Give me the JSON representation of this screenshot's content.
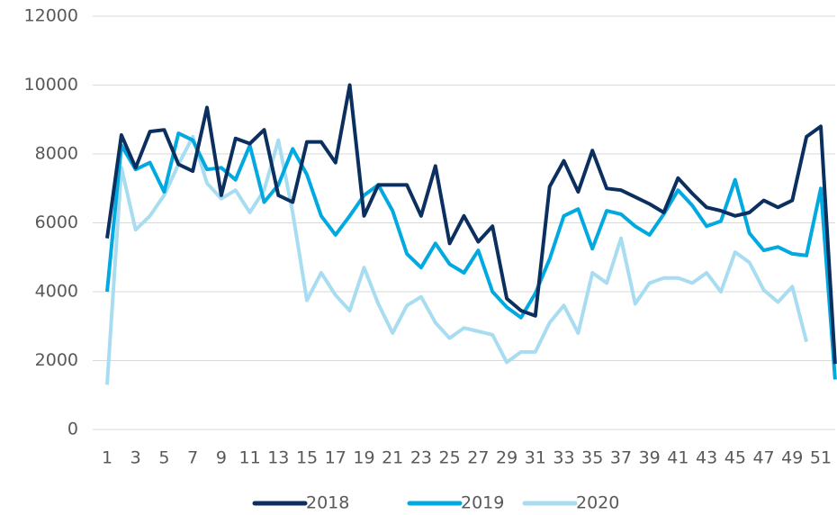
{
  "chart_data": {
    "type": "line",
    "categories": [
      "1",
      null,
      "3",
      null,
      "5",
      null,
      "7",
      null,
      "9",
      null,
      "11",
      null,
      "13",
      null,
      "15",
      null,
      "17",
      null,
      "19",
      null,
      "21",
      null,
      "23",
      null,
      "25",
      null,
      "27",
      null,
      "29",
      null,
      "31",
      null,
      "33",
      null,
      "35",
      null,
      "37",
      null,
      "39",
      null,
      "41",
      null,
      "43",
      null,
      "45",
      null,
      "47",
      null,
      "49",
      null,
      "51",
      null
    ],
    "series": [
      {
        "name": "2018",
        "color": "#0b2f5e",
        "values": [
          5550,
          8550,
          7600,
          8650,
          8700,
          7700,
          7500,
          9350,
          6800,
          8450,
          8300,
          8700,
          6800,
          6600,
          8350,
          8350,
          7750,
          10000,
          6200,
          7100,
          7100,
          7100,
          6200,
          7650,
          5400,
          6200,
          5450,
          5900,
          3800,
          3450,
          3300,
          7050,
          7800,
          6900,
          8100,
          7000,
          6950,
          6750,
          6550,
          6300,
          7300,
          6850,
          6450,
          6350,
          6200,
          6300,
          6650,
          6450,
          6650,
          8500,
          8800,
          1900
        ]
      },
      {
        "name": "2019",
        "color": "#00a9e0",
        "values": [
          4000,
          8250,
          7550,
          7750,
          6900,
          8600,
          8400,
          7550,
          7600,
          7250,
          8250,
          6600,
          7100,
          8150,
          7400,
          6200,
          5650,
          6200,
          6800,
          7100,
          6350,
          5100,
          4700,
          5400,
          4800,
          4550,
          5200,
          4000,
          3550,
          3250,
          3950,
          4950,
          6200,
          6400,
          5250,
          6350,
          6250,
          5900,
          5650,
          6250,
          6950,
          6500,
          5900,
          6050,
          7250,
          5700,
          5200,
          5300,
          5100,
          5050,
          7000,
          1450
        ]
      },
      {
        "name": "2020",
        "color": "#a8dcf0",
        "values": [
          1300,
          7600,
          5800,
          6200,
          6800,
          7700,
          8500,
          7150,
          6700,
          6950,
          6300,
          6950,
          8400,
          6300,
          3750,
          4550,
          3900,
          3450,
          4700,
          3650,
          2800,
          3600,
          3850,
          3100,
          2650,
          2950,
          2850,
          2750,
          1950,
          2250,
          2250,
          3100,
          3600,
          2800,
          4550,
          4250,
          5550,
          3650,
          4250,
          4400,
          4400,
          4250,
          4550,
          4000,
          5150,
          4850,
          4050,
          3700,
          4150,
          2550,
          null,
          null
        ]
      }
    ],
    "ylim": [
      0,
      12000
    ],
    "yticks": [
      0,
      2000,
      4000,
      6000,
      8000,
      10000,
      12000
    ],
    "grid": true,
    "legend": "bottom"
  }
}
